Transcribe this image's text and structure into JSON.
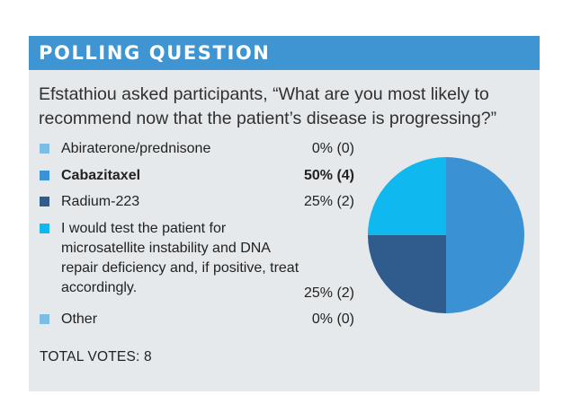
{
  "header": {
    "title": "POLLING QUESTION"
  },
  "question": "Efstathiou asked participants, “What are you most likely to recommend now that the patient’s disease is progressing?”",
  "total": "TOTAL VOTES: 8",
  "options": [
    {
      "label": "Abiraterone/prednisone",
      "pct": "0% (0)",
      "color": "#7cbde6",
      "bold": false
    },
    {
      "label": "Cabazitaxel",
      "pct": "50% (4)",
      "color": "#3a92d4",
      "bold": true
    },
    {
      "label": "Radium-223",
      "pct": "25% (2)",
      "color": "#2f5c8c",
      "bold": false
    },
    {
      "label": "I would test the patient for microsatellite instability and DNA repair deficiency and, if positive, treat accordingly.",
      "pct": "25% (2)",
      "color": "#0fb8ee",
      "bold": false
    },
    {
      "label": "Other",
      "pct": "0% (0)",
      "color": "#7cbde6",
      "bold": false
    }
  ],
  "chart_data": {
    "type": "pie",
    "total_votes": 8,
    "slices": [
      {
        "label": "Abiraterone/prednisone",
        "percent": 0,
        "votes": 0,
        "color": "#7cbde6"
      },
      {
        "label": "Cabazitaxel",
        "percent": 50,
        "votes": 4,
        "color": "#3a92d4"
      },
      {
        "label": "Radium-223",
        "percent": 25,
        "votes": 2,
        "color": "#2f5c8c"
      },
      {
        "label": "I would test the patient for microsatellite instability and DNA repair deficiency and, if positive, treat accordingly.",
        "percent": 25,
        "votes": 2,
        "color": "#0fb8ee"
      },
      {
        "label": "Other",
        "percent": 0,
        "votes": 0,
        "color": "#7cbde6"
      }
    ]
  }
}
